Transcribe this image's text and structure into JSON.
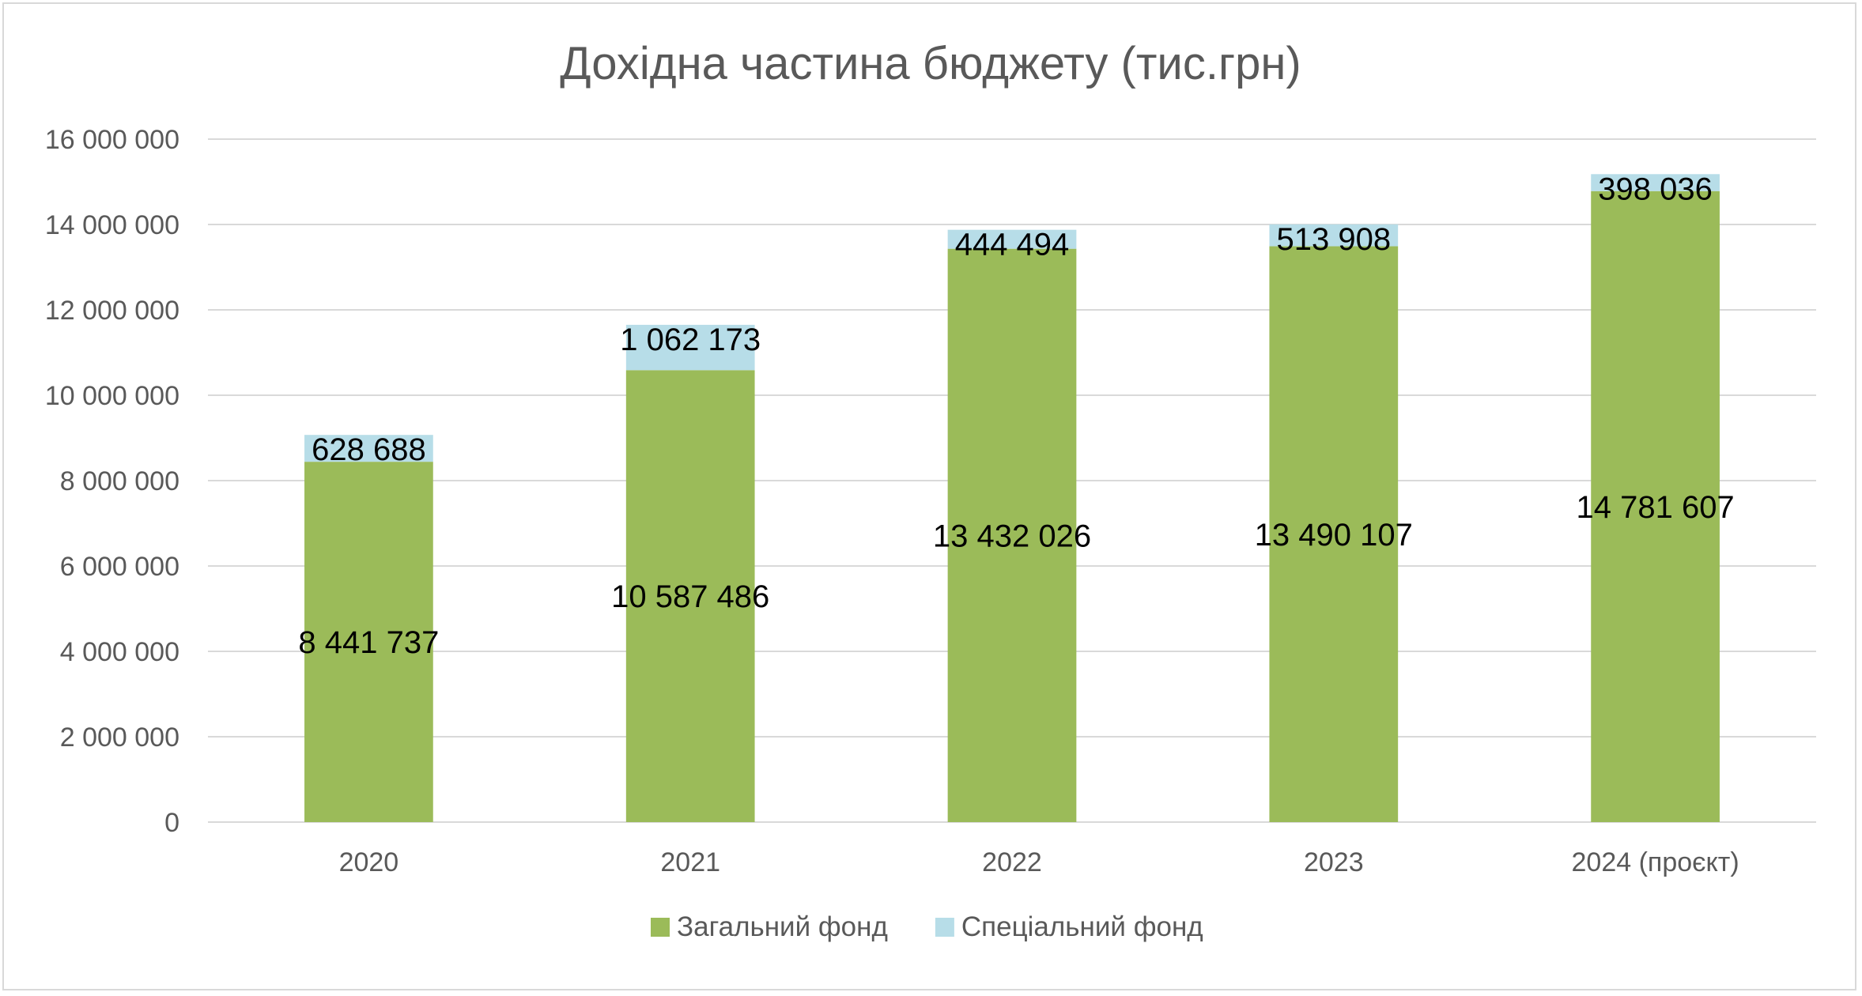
{
  "chart_data": {
    "type": "bar",
    "stacked": true,
    "title": "Дохідна частина бюджету (тис.грн)",
    "categories": [
      "2020",
      "2021",
      "2022",
      "2023",
      "2024 (проєкт)"
    ],
    "series": [
      {
        "name": "Загальний фонд",
        "color": "#9bbb59",
        "values": [
          8441737,
          10587486,
          13432026,
          13490107,
          14781607
        ],
        "labels": [
          "8 441 737",
          "10 587 486",
          "13 432 026",
          "13 490 107",
          "14 781 607"
        ]
      },
      {
        "name": "Спеціальний фонд",
        "color": "#b7dde8",
        "values": [
          628688,
          1062173,
          444494,
          513908,
          398036
        ],
        "labels": [
          "628 688",
          "1 062 173",
          "444 494",
          "513 908",
          "398 036"
        ]
      }
    ],
    "ylim": [
      0,
      16000000
    ],
    "yticks": [
      0,
      2000000,
      4000000,
      6000000,
      8000000,
      10000000,
      12000000,
      14000000,
      16000000
    ],
    "ytick_labels": [
      "0",
      "2 000 000",
      "4 000 000",
      "6 000 000",
      "8 000 000",
      "10 000 000",
      "12 000 000",
      "14 000 000",
      "16 000 000"
    ],
    "grid": true,
    "legend_position": "bottom"
  }
}
